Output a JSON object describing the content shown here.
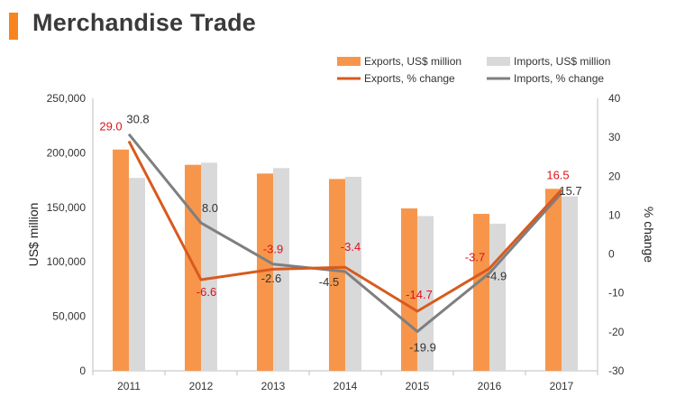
{
  "title": "Merchandise Trade",
  "colors": {
    "title_accent": "#f7841f",
    "exports_bar": "#f7964b",
    "imports_bar": "#d9d9d9",
    "exports_line": "#d85a1e",
    "imports_line": "#7f7f7f",
    "exports_label": "#e0101a",
    "imports_label": "#333333"
  },
  "chart_data": {
    "type": "bar",
    "categories": [
      "2011",
      "2012",
      "2013",
      "2014",
      "2015",
      "2016",
      "2017"
    ],
    "ylabel": "US$ million",
    "y2label": "% change",
    "ylim": [
      0,
      250000
    ],
    "y2lim": [
      -30,
      40
    ],
    "y_ticks": [
      "0",
      "50,000",
      "100,000",
      "150,000",
      "200,000",
      "250,000"
    ],
    "y2_ticks": [
      "-30",
      "-20",
      "-10",
      "0",
      "10",
      "20",
      "30",
      "40"
    ],
    "y_tick_values": [
      0,
      50000,
      100000,
      150000,
      200000,
      250000
    ],
    "y2_tick_values": [
      -30,
      -20,
      -10,
      0,
      10,
      20,
      30,
      40
    ],
    "legend_position": "top-right",
    "grid": false,
    "series": [
      {
        "name": "Exports, US$ million",
        "type": "bar",
        "axis": "left",
        "values": [
          203000,
          189000,
          181000,
          176000,
          149000,
          144000,
          167000
        ]
      },
      {
        "name": "Imports, US$ million",
        "type": "bar",
        "axis": "left",
        "values": [
          177000,
          191000,
          186000,
          178000,
          142000,
          135000,
          160000
        ]
      },
      {
        "name": "Exports, % change",
        "type": "line",
        "axis": "right",
        "values": [
          29.0,
          -6.6,
          -3.9,
          -3.4,
          -14.7,
          -3.7,
          16.5
        ],
        "labels": [
          "29.0",
          "-6.6",
          "-3.9",
          "-3.4",
          "-14.7",
          "-3.7",
          "16.5"
        ]
      },
      {
        "name": "Imports, % change",
        "type": "line",
        "axis": "right",
        "values": [
          30.8,
          8.0,
          -2.6,
          -4.5,
          -19.9,
          -4.9,
          15.7
        ],
        "labels": [
          "30.8",
          "8.0",
          "-2.6",
          "-4.5",
          "-19.9",
          "-4.9",
          "15.7"
        ]
      }
    ]
  }
}
